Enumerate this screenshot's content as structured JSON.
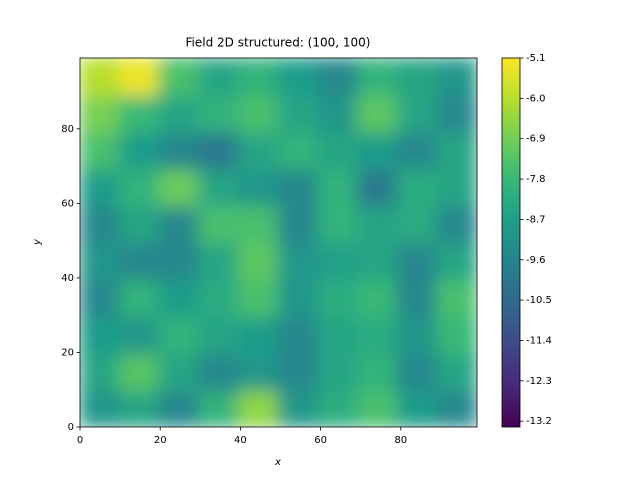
{
  "chart_data": {
    "type": "heatmap",
    "title": "Field 2D structured: (100, 100)",
    "x_label": "x",
    "y_label": "y",
    "colormap": "viridis",
    "xlim": [
      0,
      99
    ],
    "ylim": [
      0,
      99
    ],
    "xticks": [
      0,
      20,
      40,
      60,
      80
    ],
    "yticks": [
      0,
      20,
      40,
      60,
      80
    ],
    "clim": [
      -13.33,
      -5.1
    ],
    "cticks": [
      -5.1,
      {
        "value": -6,
        "label": "-6.0"
      },
      -6.9,
      -7.8,
      -8.7,
      -9.6,
      -10.5,
      -11.4,
      -12.3,
      -13.2
    ],
    "z": [
      [
        -9,
        -8.5,
        -9.5,
        -8,
        -6.5,
        -9,
        -8.2,
        -7.5,
        -8.8,
        -9.5
      ],
      [
        -8.5,
        -7.3,
        -8.5,
        -9.5,
        -9,
        -9.5,
        -8.5,
        -8,
        -9.5,
        -8.5
      ],
      [
        -8.8,
        -9,
        -8,
        -8.5,
        -8.8,
        -9.5,
        -8.5,
        -8.3,
        -9,
        -7.8
      ],
      [
        -9.5,
        -8,
        -8.8,
        -8.3,
        -7.5,
        -9,
        -8.2,
        -7.8,
        -9.5,
        -7.5
      ],
      [
        -9,
        -9.5,
        -9.5,
        -8.5,
        -7.2,
        -9,
        -8.7,
        -8.5,
        -9.5,
        -8.5
      ],
      [
        -9.5,
        -8.5,
        -9.5,
        -7.5,
        -7.5,
        -9.5,
        -8,
        -8.5,
        -8.3,
        -9.5
      ],
      [
        -8.8,
        -8,
        -7,
        -8.5,
        -9,
        -9.5,
        -8,
        -10,
        -8.2,
        -8.5
      ],
      [
        -7.5,
        -8.8,
        -9.5,
        -10,
        -8.5,
        -8,
        -8.5,
        -8.8,
        -9.5,
        -8.5
      ],
      [
        -6.8,
        -7.8,
        -8.5,
        -8,
        -7.5,
        -8.5,
        -9,
        -7.2,
        -8.5,
        -9.5
      ],
      [
        -6,
        -5.3,
        -7.5,
        -8.5,
        -8,
        -8.8,
        -9.5,
        -8,
        -8.5,
        -9
      ]
    ]
  }
}
